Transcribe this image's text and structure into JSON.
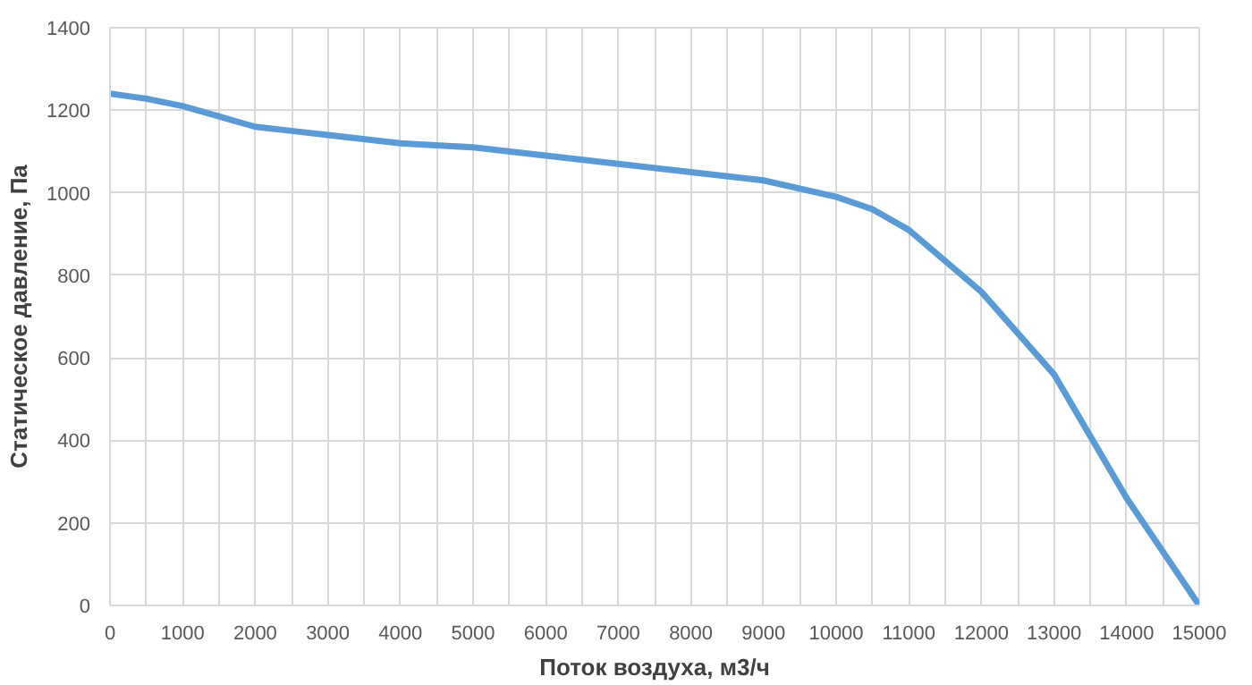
{
  "chart_data": {
    "type": "line",
    "xlabel": "Поток воздуха, м3/ч",
    "ylabel": "Статическое давление, Па",
    "x": [
      0,
      500,
      1000,
      1500,
      2000,
      2500,
      3000,
      4000,
      5000,
      6000,
      7000,
      8000,
      9000,
      10000,
      10500,
      11000,
      12000,
      13000,
      14000,
      15000
    ],
    "series": [
      {
        "color": "#5b9bd5",
        "values": [
          1240,
          1228,
          1210,
          1185,
          1160,
          1150,
          1140,
          1120,
          1110,
          1090,
          1070,
          1050,
          1030,
          990,
          960,
          910,
          760,
          560,
          260,
          0
        ]
      }
    ],
    "xlim": [
      0,
      15000
    ],
    "ylim": [
      0,
      1400
    ],
    "xticks": [
      0,
      {
        "value": 500,
        "label": null
      },
      1000,
      {
        "value": 1500,
        "label": null
      },
      2000,
      {
        "value": 2500,
        "label": null
      },
      3000,
      {
        "value": 3500,
        "label": null
      },
      4000,
      {
        "value": 4500,
        "label": null
      },
      5000,
      {
        "value": 5500,
        "label": null
      },
      6000,
      {
        "value": 6500,
        "label": null
      },
      7000,
      {
        "value": 7500,
        "label": null
      },
      8000,
      {
        "value": 8500,
        "label": null
      },
      9000,
      {
        "value": 9500,
        "label": null
      },
      10000,
      {
        "value": 10500,
        "label": null
      },
      11000,
      {
        "value": 11500,
        "label": null
      },
      12000,
      {
        "value": 12500,
        "label": null
      },
      13000,
      {
        "value": 13500,
        "label": null
      },
      14000,
      {
        "value": 14500,
        "label": null
      },
      15000
    ],
    "yticks": [
      0,
      200,
      400,
      600,
      800,
      1000,
      1200,
      1400
    ],
    "grid": true,
    "marker": "none",
    "line_style": "solid"
  }
}
